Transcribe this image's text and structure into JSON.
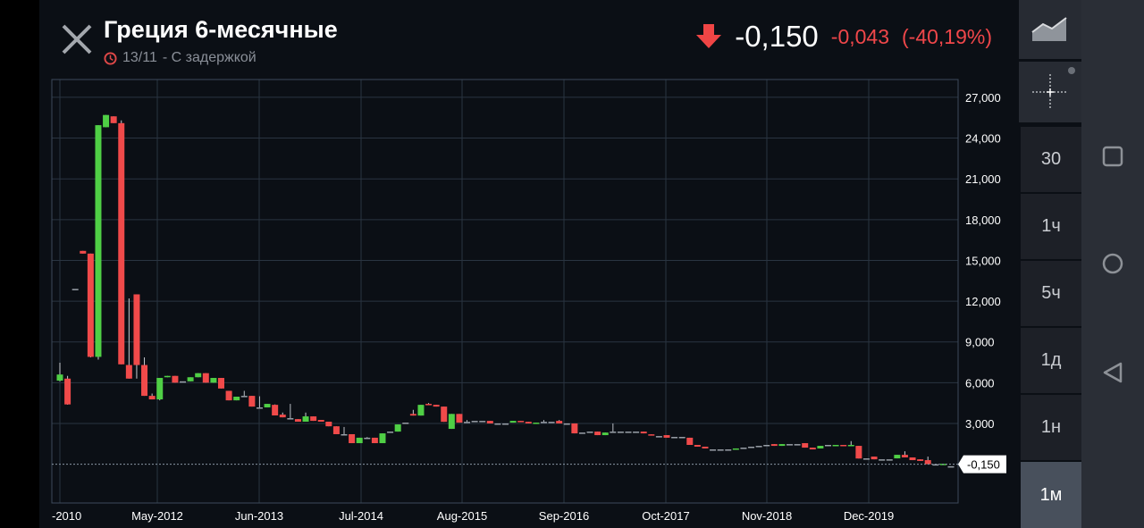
{
  "header": {
    "title": "Греция 6-месячные",
    "date": "13/11",
    "delay_text": "- С задержкой",
    "last_price": "-0,150",
    "change": "-0,043",
    "change_pct": "(-40,19%)",
    "direction": "down"
  },
  "colors": {
    "up": "#4fcf45",
    "down": "#f04a4a",
    "neutral": "#9aa0a8",
    "accent_red": "#f0474a"
  },
  "sidebar": {
    "tools": [
      "area-chart-icon",
      "crosshair-icon"
    ],
    "timeframes": [
      {
        "label": "30",
        "selected": false
      },
      {
        "label": "1ч",
        "selected": false
      },
      {
        "label": "5ч",
        "selected": false
      },
      {
        "label": "1д",
        "selected": false
      },
      {
        "label": "1н",
        "selected": false
      },
      {
        "label": "1м",
        "selected": true
      }
    ]
  },
  "android_nav": [
    "recents-icon",
    "home-icon",
    "back-icon"
  ],
  "chart_data": {
    "type": "candlestick",
    "interval": "1 month",
    "ylim": [
      -3000,
      28000
    ],
    "yticks": [
      3000,
      6000,
      9000,
      12000,
      15000,
      18000,
      21000,
      24000,
      27000
    ],
    "ytick_labels": [
      "3,000",
      "6,000",
      "9,000",
      "12,000",
      "15,000",
      "18,000",
      "21,000",
      "24,000",
      "27,000"
    ],
    "xtick_labels": [
      "-2010",
      "May-2012",
      "Jun-2013",
      "Jul-2014",
      "Aug-2015",
      "Sep-2016",
      "Oct-2017",
      "Nov-2018",
      "Dec-2019"
    ],
    "last_value_label": "-0,150",
    "last_value": -0.15,
    "grid": true,
    "candles_ohlc": [
      [
        6150,
        7470,
        6100,
        6600
      ],
      [
        6300,
        6500,
        4380,
        4400
      ],
      [
        12900,
        12900,
        12900,
        12900
      ],
      [
        15700,
        15700,
        15500,
        15500
      ],
      [
        15500,
        15500,
        7860,
        7900
      ],
      [
        7900,
        24950,
        7700,
        24950
      ],
      [
        24800,
        25700,
        24800,
        25700
      ],
      [
        25600,
        25600,
        25100,
        25100
      ],
      [
        25100,
        25300,
        7350,
        7350
      ],
      [
        7300,
        12200,
        6300,
        6300
      ],
      [
        12500,
        12500,
        6300,
        7300
      ],
      [
        7300,
        7860,
        5030,
        5030
      ],
      [
        5030,
        5200,
        4770,
        4770
      ],
      [
        4770,
        6350,
        4700,
        6350
      ],
      [
        6400,
        6500,
        6400,
        6500
      ],
      [
        6500,
        6500,
        6000,
        6000
      ],
      [
        6100,
        6100,
        6100,
        6100
      ],
      [
        6100,
        6400,
        6100,
        6400
      ],
      [
        6400,
        6700,
        6400,
        6700
      ],
      [
        6700,
        6700,
        6000,
        6000
      ],
      [
        6000,
        6350,
        6000,
        6350
      ],
      [
        6350,
        6350,
        5570,
        5570
      ],
      [
        5400,
        5400,
        4700,
        4700
      ],
      [
        4700,
        4970,
        4700,
        4970
      ],
      [
        5030,
        5400,
        5030,
        5030
      ],
      [
        5030,
        5030,
        4240,
        4240
      ],
      [
        4180,
        5000,
        4180,
        4180
      ],
      [
        4180,
        4440,
        4180,
        4440
      ],
      [
        4370,
        4400,
        3590,
        3590
      ],
      [
        3650,
        3800,
        3450,
        3450
      ],
      [
        3390,
        4440,
        3390,
        3390
      ],
      [
        3320,
        3320,
        3130,
        3130
      ],
      [
        3130,
        3800,
        3130,
        3520
      ],
      [
        3520,
        3520,
        3190,
        3190
      ],
      [
        3260,
        3260,
        3130,
        3130
      ],
      [
        3130,
        3130,
        2790,
        2790
      ],
      [
        2790,
        2790,
        2210,
        2210
      ],
      [
        2210,
        2740,
        2210,
        2210
      ],
      [
        2210,
        2210,
        1550,
        1550
      ],
      [
        1550,
        1950,
        1550,
        1950
      ],
      [
        1950,
        2000,
        1950,
        1950
      ],
      [
        1950,
        1950,
        1550,
        1550
      ],
      [
        1550,
        2270,
        1550,
        2270
      ],
      [
        2400,
        2400,
        2400,
        2400
      ],
      [
        2400,
        2930,
        2400,
        2930
      ],
      [
        3060,
        3060,
        3060,
        3060
      ],
      [
        3700,
        4000,
        3580,
        3580
      ],
      [
        3580,
        4370,
        3580,
        4370
      ],
      [
        4440,
        4500,
        4370,
        4370
      ],
      [
        4370,
        4370,
        4240,
        4240
      ],
      [
        4240,
        4240,
        3120,
        3120
      ],
      [
        2600,
        3700,
        2600,
        3700
      ],
      [
        3700,
        3700,
        3060,
        3060
      ],
      [
        3120,
        3250,
        3120,
        3120
      ],
      [
        3190,
        3190,
        3190,
        3190
      ],
      [
        3190,
        3190,
        3190,
        3190
      ],
      [
        3190,
        3190,
        3000,
        3000
      ],
      [
        3000,
        3000,
        3000,
        3000
      ],
      [
        3000,
        3000,
        3000,
        3000
      ],
      [
        3060,
        3190,
        3060,
        3190
      ],
      [
        3190,
        3190,
        3120,
        3120
      ],
      [
        3120,
        3120,
        3000,
        3000
      ],
      [
        3000,
        3060,
        3000,
        3060
      ],
      [
        3120,
        3250,
        3120,
        3120
      ],
      [
        3120,
        3120,
        3120,
        3120
      ],
      [
        3190,
        3250,
        3000,
        3000
      ],
      [
        3000,
        3000,
        3000,
        3000
      ],
      [
        3000,
        3000,
        2270,
        2270
      ],
      [
        2330,
        2330,
        2330,
        2330
      ],
      [
        2400,
        2400,
        2400,
        2400
      ],
      [
        2400,
        2400,
        2140,
        2140
      ],
      [
        2140,
        2330,
        2140,
        2330
      ],
      [
        2400,
        3000,
        2400,
        2400
      ],
      [
        2400,
        2400,
        2400,
        2400
      ],
      [
        2400,
        2400,
        2400,
        2400
      ],
      [
        2400,
        2400,
        2400,
        2400
      ],
      [
        2400,
        2400,
        2270,
        2270
      ],
      [
        2200,
        2200,
        2140,
        2140
      ],
      [
        2070,
        2070,
        2070,
        2070
      ],
      [
        2140,
        2140,
        1950,
        1950
      ],
      [
        2010,
        2010,
        2010,
        2010
      ],
      [
        2010,
        2010,
        2010,
        2010
      ],
      [
        1950,
        1950,
        1420,
        1420
      ],
      [
        1420,
        1420,
        1290,
        1290
      ],
      [
        1290,
        1290,
        1160,
        1160
      ],
      [
        1090,
        1090,
        1090,
        1090
      ],
      [
        1090,
        1090,
        1090,
        1090
      ],
      [
        1090,
        1090,
        1090,
        1090
      ],
      [
        1090,
        1160,
        1090,
        1160
      ],
      [
        1220,
        1220,
        1220,
        1220
      ],
      [
        1290,
        1290,
        1290,
        1290
      ],
      [
        1350,
        1350,
        1350,
        1350
      ],
      [
        1420,
        1420,
        1420,
        1420
      ],
      [
        1480,
        1480,
        1350,
        1350
      ],
      [
        1350,
        1480,
        1350,
        1480
      ],
      [
        1480,
        1480,
        1480,
        1480
      ],
      [
        1480,
        1480,
        1480,
        1480
      ],
      [
        1550,
        1550,
        1220,
        1220
      ],
      [
        1220,
        1220,
        1090,
        1090
      ],
      [
        1160,
        1350,
        1160,
        1350
      ],
      [
        1420,
        1420,
        1420,
        1420
      ],
      [
        1350,
        1420,
        1350,
        1420
      ],
      [
        1420,
        1420,
        1350,
        1350
      ],
      [
        1350,
        1700,
        1350,
        1420
      ],
      [
        1350,
        1350,
        420,
        420
      ],
      [
        430,
        430,
        430,
        430
      ],
      [
        560,
        560,
        360,
        360
      ],
      [
        360,
        360,
        360,
        360
      ],
      [
        360,
        360,
        360,
        360
      ],
      [
        430,
        690,
        430,
        690
      ],
      [
        690,
        950,
        500,
        500
      ],
      [
        500,
        500,
        300,
        300
      ],
      [
        360,
        360,
        240,
        240
      ],
      [
        300,
        560,
        0,
        0
      ],
      [
        0,
        0,
        0,
        0
      ],
      [
        -30,
        30,
        -30,
        30
      ],
      [
        -150,
        -150,
        -150,
        -150
      ]
    ]
  }
}
